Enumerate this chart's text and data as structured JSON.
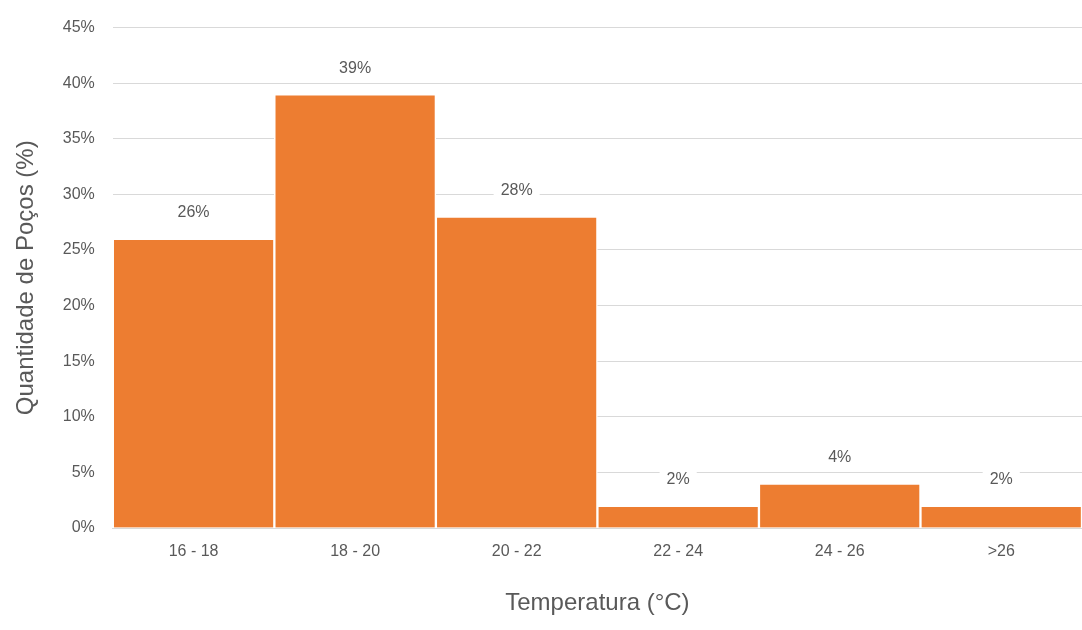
{
  "chart_data": {
    "type": "bar",
    "xlabel": "Temperatura (°C)",
    "ylabel": "Quantidade de Poços (%)",
    "categories": [
      "16 - 18",
      "18 - 20",
      "20 - 22",
      "22 - 24",
      "24 - 26",
      ">26"
    ],
    "values": [
      26,
      39,
      28,
      2,
      4,
      2
    ],
    "value_labels": [
      "26%",
      "39%",
      "28%",
      "2%",
      "4%",
      "2%"
    ],
    "color": "#ed7d31",
    "ylim": [
      0,
      45
    ],
    "yticks": [
      {
        "value": 0,
        "label": "0%"
      },
      {
        "value": 5,
        "label": "5%"
      },
      {
        "value": 10,
        "label": "10%"
      },
      {
        "value": 15,
        "label": "15%"
      },
      {
        "value": 20,
        "label": "20%"
      },
      {
        "value": 25,
        "label": "25%"
      },
      {
        "value": 30,
        "label": "30%"
      },
      {
        "value": 35,
        "label": "35%"
      },
      {
        "value": 40,
        "label": "40%"
      },
      {
        "value": 45,
        "label": "45%"
      }
    ],
    "grid": "y",
    "legend": false
  }
}
